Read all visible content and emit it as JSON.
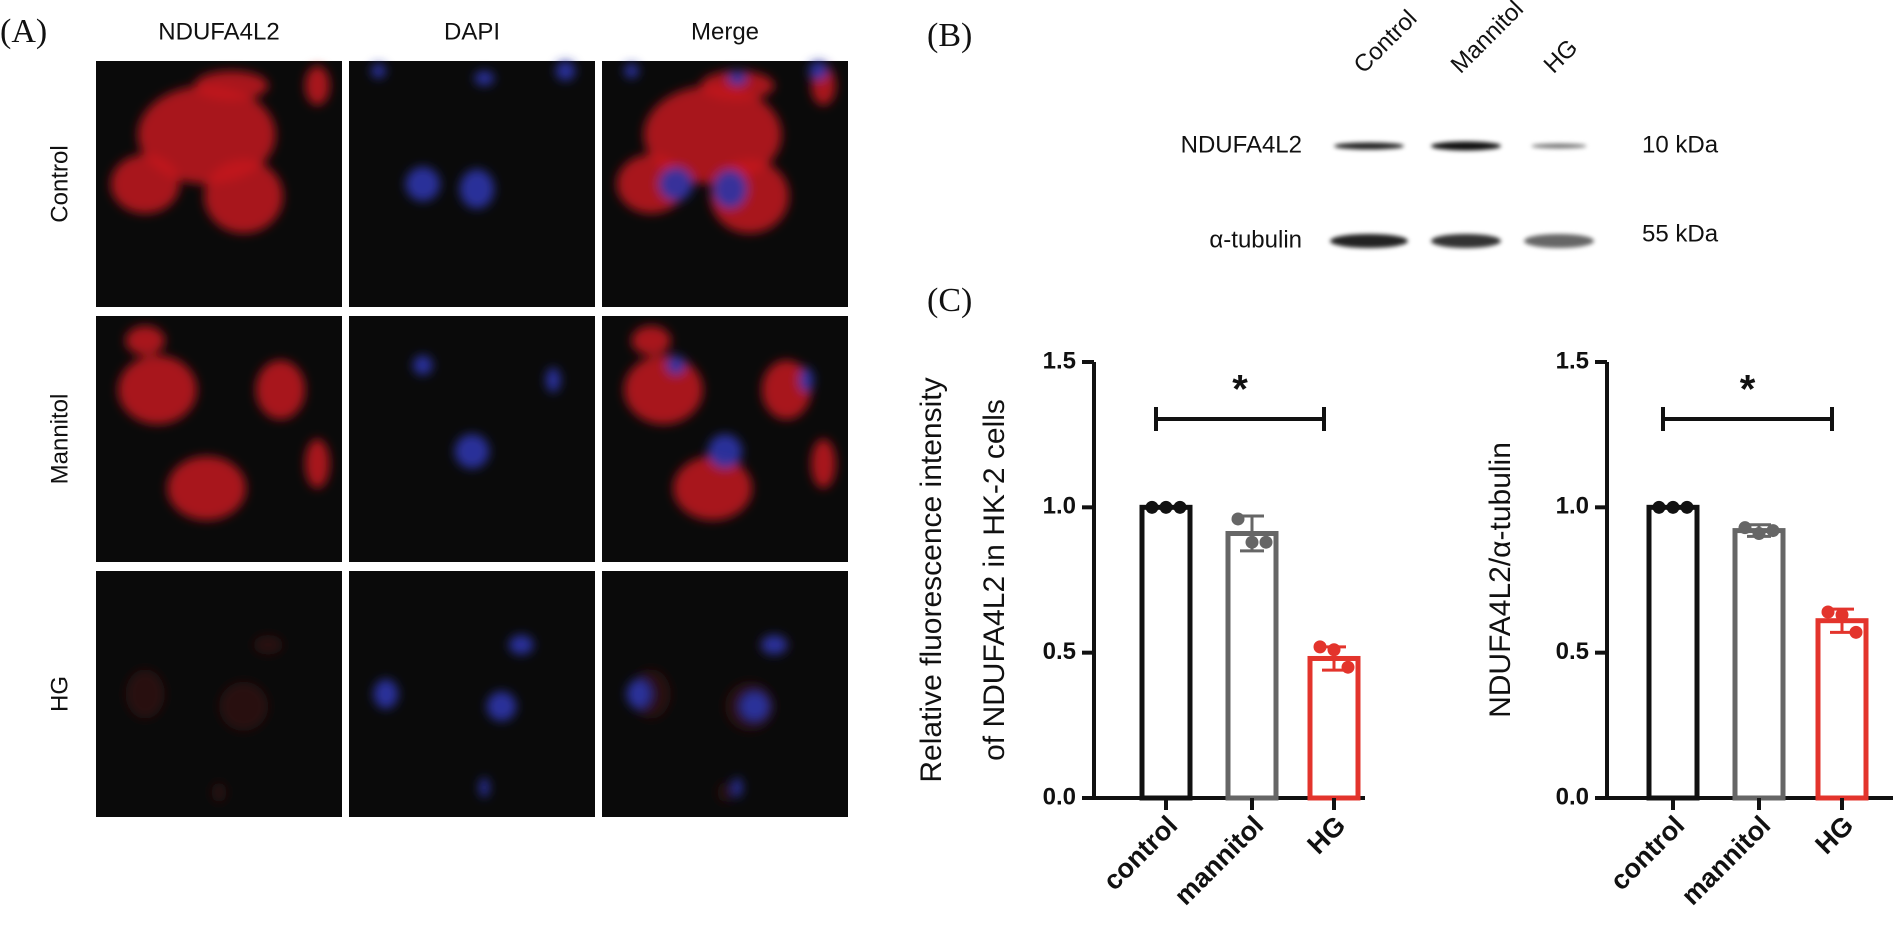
{
  "panel_a": {
    "label": "(A)",
    "columns": [
      "NDUFA4L2",
      "DAPI",
      "Merge"
    ],
    "rows": [
      "Control",
      "Mannitol",
      "HG"
    ]
  },
  "panel_b": {
    "label": "(B)",
    "lanes": [
      "Control",
      "Mannitol",
      "HG"
    ],
    "bands": [
      {
        "name": "NDUFA4L2",
        "size": "10 kDa"
      },
      {
        "name": "α-tubulin",
        "size": "55 kDa"
      }
    ]
  },
  "panel_c": {
    "label": "(C)"
  },
  "chart_data": [
    {
      "type": "bar",
      "ylabel": [
        "Relative fluorescence intensity",
        "of  NDUFA4L2 in HK-2 cells"
      ],
      "categories": [
        "control",
        "mannitol",
        "HG"
      ],
      "values": [
        1.0,
        0.91,
        0.48
      ],
      "errors": [
        0,
        0.06,
        0.04
      ],
      "points": [
        [
          1.0,
          1.0,
          1.0
        ],
        [
          0.96,
          0.88,
          0.88
        ],
        [
          0.52,
          0.51,
          0.45
        ]
      ],
      "colors": [
        "#111111",
        "#666666",
        "#e3342c"
      ],
      "annotation": "*",
      "ylim": [
        0,
        1.5
      ],
      "yticks": [
        {
          "value": 0,
          "label": "0.0"
        },
        0.5,
        {
          "value": 1,
          "label": "1.0"
        },
        1.5
      ]
    },
    {
      "type": "bar",
      "ylabel": [
        "NDUFA4L2/α-tubulin"
      ],
      "categories": [
        "control",
        "mannitol",
        "HG"
      ],
      "values": [
        1.0,
        0.92,
        0.61
      ],
      "errors": [
        0,
        0.02,
        0.04
      ],
      "points": [
        [
          1.0,
          1.0,
          1.0
        ],
        [
          0.93,
          0.91,
          0.92
        ],
        [
          0.64,
          0.63,
          0.57
        ]
      ],
      "colors": [
        "#111111",
        "#666666",
        "#e3342c"
      ],
      "annotation": "*",
      "ylim": [
        0,
        1.5
      ],
      "yticks": [
        {
          "value": 0,
          "label": "0.0"
        },
        0.5,
        {
          "value": 1,
          "label": "1.0"
        },
        1.5
      ]
    }
  ]
}
